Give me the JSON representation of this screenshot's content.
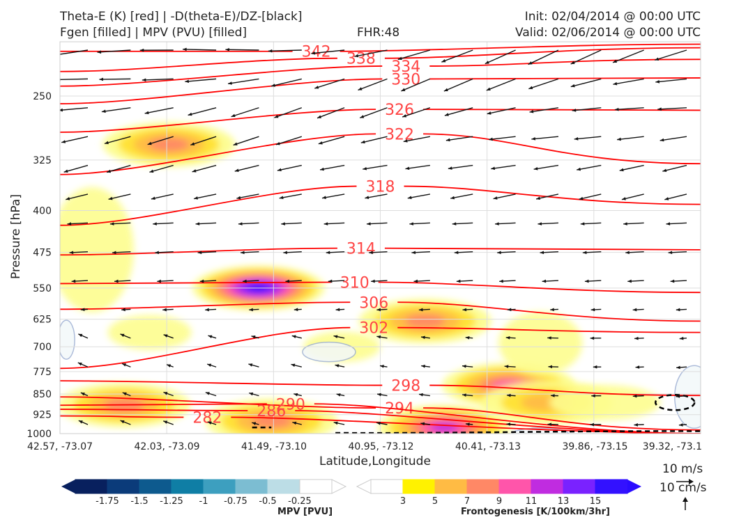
{
  "header": {
    "title_line1": "Theta-E (K) [red] | -D(theta-E)/DZ-[black]",
    "title_line2": "Fgen [filled] | MPV (PVU) [filled]",
    "fhr": "FHR:48",
    "init": "Init: 02/04/2014 @ 00:00 UTC",
    "valid": "Valid: 02/06/2014 @ 00:00 UTC"
  },
  "chart_data": {
    "type": "cross-section",
    "xlabel": "Latitude,Longitude",
    "ylabel": "Pressure [hPa]",
    "x_ticks": [
      "42.57, -73.07",
      "42.03, -73.09",
      "41.49, -73.10",
      "40.95, -73.12",
      "40.41, -73.13",
      "39.86, -73.15",
      "39.32, -73.1"
    ],
    "y_ticks": [
      250,
      325,
      400,
      475,
      550,
      625,
      700,
      775,
      850,
      925,
      1000
    ],
    "ylim": [
      1000,
      200
    ],
    "y_scale": "log-pressure (inverted)",
    "theta_e_contours": {
      "color": "#ff0000",
      "labels": [
        342,
        338,
        334,
        330,
        326,
        322,
        318,
        314,
        310,
        306,
        302,
        298,
        294,
        290,
        286,
        282
      ]
    },
    "frontogenesis_fill": {
      "label": "Frontogenesis [K/100km/3hr]",
      "levels": [
        3,
        5,
        7,
        9,
        11,
        13,
        15
      ],
      "colors": [
        "#fdfd8e",
        "#ffe033",
        "#ffbb44",
        "#ff8866",
        "#ff55aa",
        "#c02ce0",
        "#7a22ff",
        "#3311ff"
      ],
      "maxima": [
        {
          "x_frac": 0.31,
          "p": 550,
          "value": 15
        },
        {
          "x_frac": 0.6,
          "p": 975,
          "value": 12
        },
        {
          "x_frac": 0.7,
          "p": 820,
          "value": 10
        },
        {
          "x_frac": 0.17,
          "p": 305,
          "value": 7
        },
        {
          "x_frac": 0.57,
          "p": 630,
          "value": 7
        },
        {
          "x_frac": 0.1,
          "p": 890,
          "value": 7
        },
        {
          "x_frac": 0.33,
          "p": 950,
          "value": 7
        },
        {
          "x_frac": 0.76,
          "p": 880,
          "value": 5
        }
      ]
    },
    "mpv_fill": {
      "label": "MPV [PVU]",
      "levels": [
        -1.75,
        -1.5,
        -1.25,
        -1.0,
        -0.75,
        -0.5,
        -0.25
      ],
      "colors": [
        "#08205e",
        "#0b3b7a",
        "#0d5a8e",
        "#0f7ea5",
        "#3d9fbf",
        "#7cbdd2",
        "#bcdde6",
        "#ffffff"
      ]
    },
    "wind_vectors": {
      "color": "#111111",
      "reference": [
        "10 m/s",
        "10 cm/s"
      ]
    },
    "stability_contour": {
      "color": "#000000",
      "style": "dashed"
    }
  }
}
